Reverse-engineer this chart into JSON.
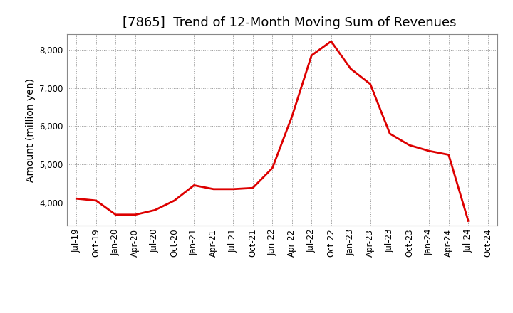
{
  "title": "[7865]  Trend of 12-Month Moving Sum of Revenues",
  "ylabel": "Amount (million yen)",
  "line_color": "#dd0000",
  "background_color": "#ffffff",
  "plot_bg_color": "#ffffff",
  "grid_color": "#999999",
  "ylim": [
    3400,
    8400
  ],
  "yticks": [
    4000,
    5000,
    6000,
    7000,
    8000
  ],
  "values": [
    4100,
    4050,
    3680,
    3680,
    3800,
    4050,
    4450,
    4350,
    4350,
    4380,
    4900,
    6250,
    7850,
    8220,
    7500,
    7100,
    5800,
    5500,
    5350,
    5250,
    3520
  ],
  "xtick_labels": [
    "Jul-19",
    "Oct-19",
    "Jan-20",
    "Apr-20",
    "Jul-20",
    "Oct-20",
    "Jan-21",
    "Apr-21",
    "Jul-21",
    "Oct-21",
    "Jan-22",
    "Apr-22",
    "Jul-22",
    "Oct-22",
    "Jan-23",
    "Apr-23",
    "Jul-23",
    "Oct-23",
    "Jan-24",
    "Apr-24",
    "Jul-24",
    "Oct-24"
  ],
  "title_fontsize": 13,
  "axis_label_fontsize": 10,
  "tick_fontsize": 8.5,
  "line_width": 2.0
}
